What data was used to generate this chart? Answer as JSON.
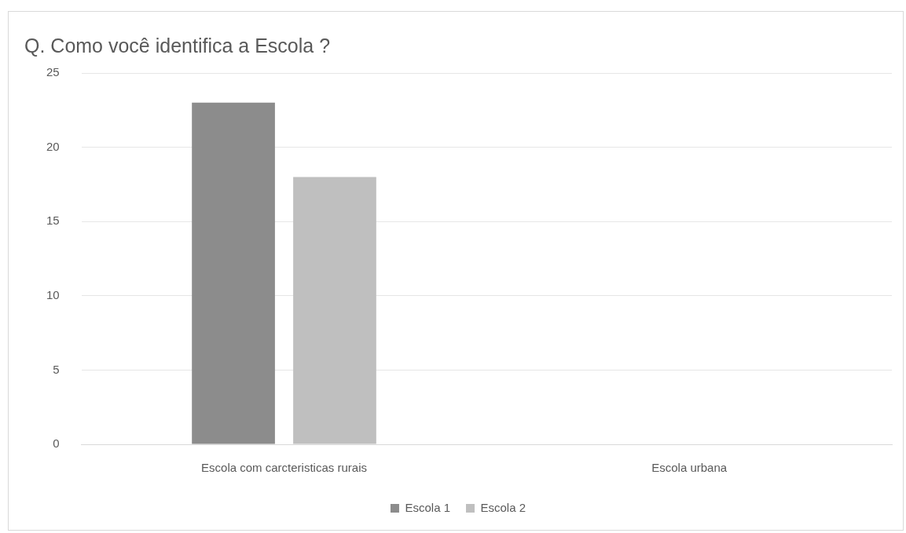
{
  "chart_data": {
    "type": "bar",
    "title": "Q. Como você identifica a Escola ?",
    "categories": [
      "Escola com carcteristicas rurais",
      "Escola urbana"
    ],
    "series": [
      {
        "name": "Escola 1",
        "color": "#8c8c8c",
        "values": [
          23,
          0
        ]
      },
      {
        "name": "Escola 2",
        "color": "#bfbfbf",
        "values": [
          18,
          0
        ]
      }
    ],
    "ylim": [
      0,
      25
    ],
    "yticks": [
      0,
      5,
      10,
      15,
      20,
      25
    ],
    "grid": "y",
    "legend": "bottom"
  }
}
